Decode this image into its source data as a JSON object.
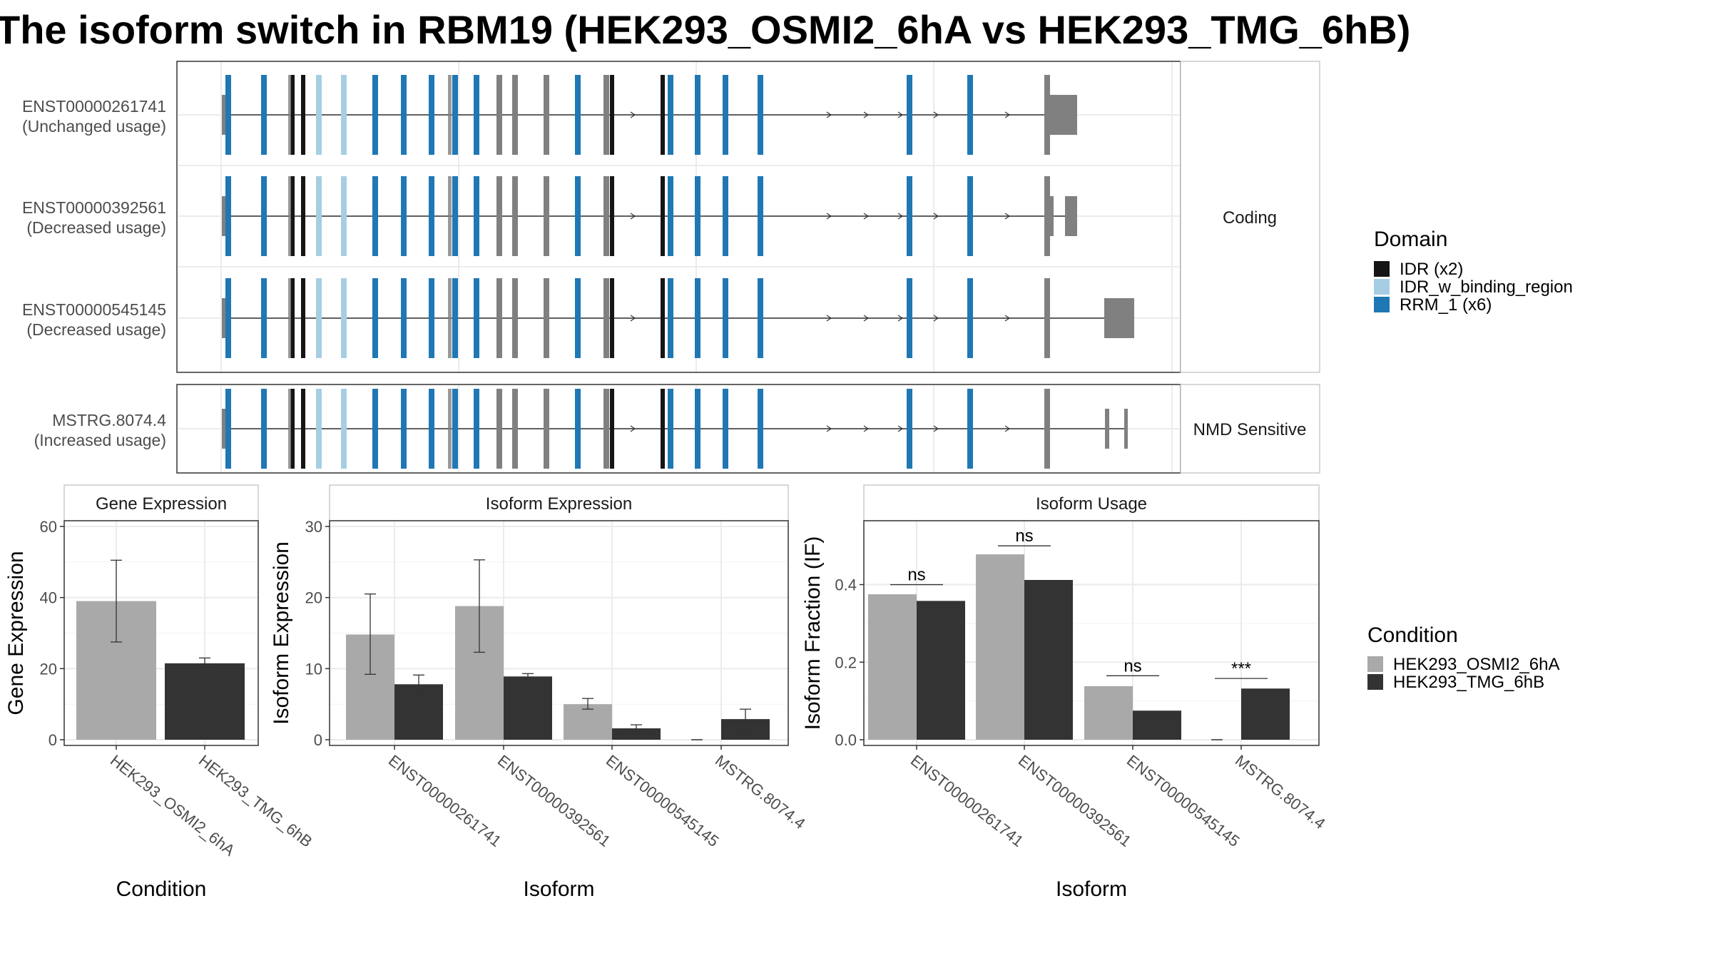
{
  "title": "The isoform switch in RBM19 (HEK293_OSMI2_6hA vs HEK293_TMG_6hB)",
  "colors": {
    "idr": "#151515",
    "idr_binding": "#a6cee3",
    "rrm": "#1f78b4",
    "utr": "#808080",
    "condA": "#a9a9a9",
    "condB": "#333333"
  },
  "structure": {
    "facets": [
      "Coding",
      "NMD Sensitive"
    ],
    "isoforms": [
      {
        "id": "ENST00000261741",
        "usage": "(Unchanged usage)",
        "facet": 0
      },
      {
        "id": "ENST00000392561",
        "usage": "(Decreased usage)",
        "facet": 0
      },
      {
        "id": "ENST00000545145",
        "usage": "(Decreased usage)",
        "facet": 0
      },
      {
        "id": "MSTRG.8074.4",
        "usage": "(Increased usage)",
        "facet": 1
      }
    ],
    "legend": {
      "title": "Domain",
      "items": [
        {
          "label": "IDR (x2)",
          "color_key": "idr"
        },
        {
          "label": "IDR_w_binding_region",
          "color_key": "idr_binding"
        },
        {
          "label": "RRM_1 (x6)",
          "color_key": "rrm"
        }
      ]
    }
  },
  "chart_data": [
    {
      "type": "bar",
      "title": "Gene Expression",
      "xlabel": "Condition",
      "ylabel": "Gene Expression",
      "ylim": [
        0,
        60
      ],
      "yticks": [
        0,
        20,
        40,
        60
      ],
      "categories": [
        "HEK293_OSMI2_6hA",
        "HEK293_TMG_6hB"
      ],
      "series": [
        {
          "name": "HEK293_OSMI2_6hA",
          "values": [
            39,
            null
          ],
          "err_low": [
            27.5,
            null
          ],
          "err_high": [
            50.5,
            null
          ]
        },
        {
          "name": "HEK293_TMG_6hB",
          "values": [
            null,
            21.5
          ],
          "err_low": [
            null,
            20.3
          ],
          "err_high": [
            null,
            23.0
          ]
        }
      ]
    },
    {
      "type": "bar",
      "title": "Isoform Expression",
      "xlabel": "Isoform",
      "ylabel": "Isoform Expression",
      "ylim": [
        0,
        30
      ],
      "yticks": [
        0,
        10,
        20,
        30
      ],
      "categories": [
        "ENST00000261741",
        "ENST00000392561",
        "ENST00000545145",
        "MSTRG.8074.4"
      ],
      "series": [
        {
          "name": "HEK293_OSMI2_6hA",
          "values": [
            14.8,
            18.8,
            5.0,
            0.0
          ],
          "err_low": [
            9.2,
            12.3,
            4.3,
            0.0
          ],
          "err_high": [
            20.5,
            25.3,
            5.8,
            0.0
          ]
        },
        {
          "name": "HEK293_TMG_6hB",
          "values": [
            7.8,
            8.9,
            1.6,
            2.9
          ],
          "err_low": [
            6.6,
            8.5,
            1.2,
            1.5
          ],
          "err_high": [
            9.1,
            9.3,
            2.1,
            4.3
          ]
        }
      ]
    },
    {
      "type": "bar",
      "title": "Isoform Usage",
      "xlabel": "Isoform",
      "ylabel": "Isoform Fraction (IF)",
      "ylim": [
        0,
        0.55
      ],
      "yticks": [
        0.0,
        0.2,
        0.4
      ],
      "categories": [
        "ENST00000261741",
        "ENST00000392561",
        "ENST00000545145",
        "MSTRG.8074.4"
      ],
      "series": [
        {
          "name": "HEK293_OSMI2_6hA",
          "values": [
            0.375,
            0.478,
            0.138,
            0.0
          ]
        },
        {
          "name": "HEK293_TMG_6hB",
          "values": [
            0.358,
            0.412,
            0.075,
            0.132
          ]
        }
      ],
      "significance": [
        {
          "label": "ns",
          "y": 0.4
        },
        {
          "label": "ns",
          "y": 0.5
        },
        {
          "label": "ns",
          "y": 0.165
        },
        {
          "label": "***",
          "y": 0.158
        }
      ]
    }
  ],
  "condition_legend": {
    "title": "Condition",
    "items": [
      "HEK293_OSMI2_6hA",
      "HEK293_TMG_6hB"
    ]
  }
}
